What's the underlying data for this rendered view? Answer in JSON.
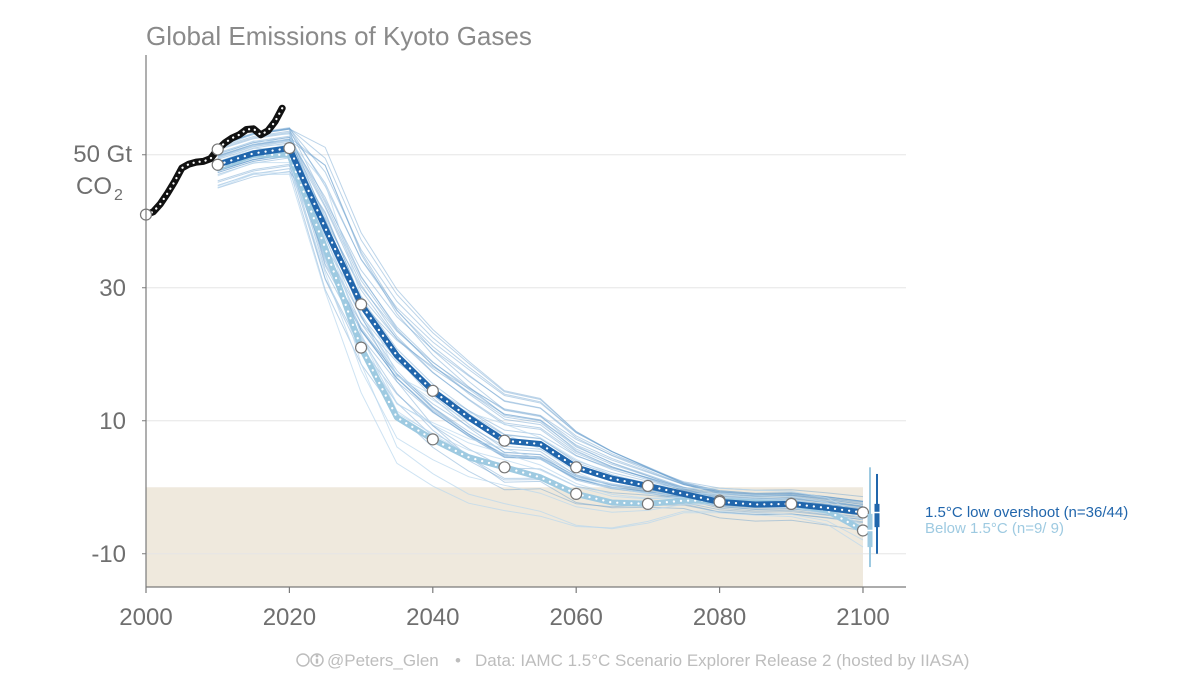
{
  "chart_data": {
    "type": "line",
    "title": "Global Emissions of Kyoto Gases",
    "ylabel_line1": "50 Gt",
    "ylabel_line2": "CO",
    "ylabel_sub": "2",
    "xlim": [
      2000,
      2106
    ],
    "ylim": [
      -15,
      65
    ],
    "x_ticks": [
      2000,
      2020,
      2040,
      2060,
      2080,
      2100
    ],
    "y_ticks": [
      -10,
      10,
      30
    ],
    "y_tick_labels": [
      "-10",
      "10",
      "30"
    ],
    "y_unit_tick": 50,
    "negative_region": [
      -15,
      0
    ],
    "grid": "horizontal",
    "series": [
      {
        "name": "historical",
        "color": "#111111",
        "x": [
          2000,
          2001,
          2002,
          2003,
          2004,
          2005,
          2006,
          2007,
          2008,
          2009,
          2010,
          2011,
          2012,
          2013,
          2014,
          2015,
          2016,
          2017,
          2018,
          2019
        ],
        "y": [
          41,
          41.4,
          42.6,
          44.2,
          46.0,
          48.0,
          48.6,
          48.9,
          49.0,
          49.4,
          50.8,
          51.8,
          52.5,
          53.0,
          53.8,
          53.9,
          53.0,
          53.6,
          55.0,
          57.0
        ]
      },
      {
        "name": "1.5°C low overshoot (n=36/44)",
        "color": "#2166ac",
        "x": [
          2010,
          2015,
          2020,
          2025,
          2030,
          2035,
          2040,
          2045,
          2050,
          2055,
          2060,
          2065,
          2070,
          2075,
          2080,
          2085,
          2090,
          2095,
          2100
        ],
        "y": [
          48.5,
          50.2,
          51.0,
          39.0,
          27.5,
          19.8,
          14.5,
          10.5,
          7.0,
          6.5,
          3.0,
          1.3,
          0.2,
          -1.0,
          -2.2,
          -2.6,
          -2.5,
          -3.1,
          -3.8
        ]
      },
      {
        "name": "Below 1.5°C (n=9/ 9)",
        "color": "#9ecae1",
        "x": [
          2010,
          2015,
          2020,
          2025,
          2030,
          2035,
          2040,
          2045,
          2050,
          2055,
          2060,
          2065,
          2070,
          2075,
          2080,
          2085,
          2090,
          2095,
          2100
        ],
        "y": [
          48.0,
          50.0,
          50.0,
          36.0,
          21.0,
          10.5,
          7.2,
          4.5,
          3.0,
          1.5,
          -1.0,
          -2.3,
          -2.5,
          -2.0,
          -2.0,
          -2.3,
          -2.5,
          -3.5,
          -6.5
        ]
      }
    ],
    "legend": {
      "placement": "right",
      "entries": [
        {
          "label": "1.5°C low overshoot (n=36/44)",
          "color": "#2166ac"
        },
        {
          "label": "Below 1.5°C (n=9/ 9)",
          "color": "#9ecae1"
        }
      ]
    },
    "ranges_2100": [
      {
        "name": "1.5°C low overshoot",
        "min": -10,
        "max": 2,
        "q1": -6,
        "q3": -2.5,
        "median": -3.8,
        "color": "#2166ac"
      },
      {
        "name": "Below 1.5°C",
        "min": -12,
        "max": 3,
        "q1": -9,
        "q3": -4,
        "median": -6.5,
        "color": "#9ecae1"
      }
    ]
  },
  "footer": {
    "icons": "cc-by-icons",
    "handle": "@Peters_Glen",
    "separator": "•",
    "source": "Data: IAMC 1.5°C Scenario Explorer Release 2 (hosted by IIASA)"
  }
}
